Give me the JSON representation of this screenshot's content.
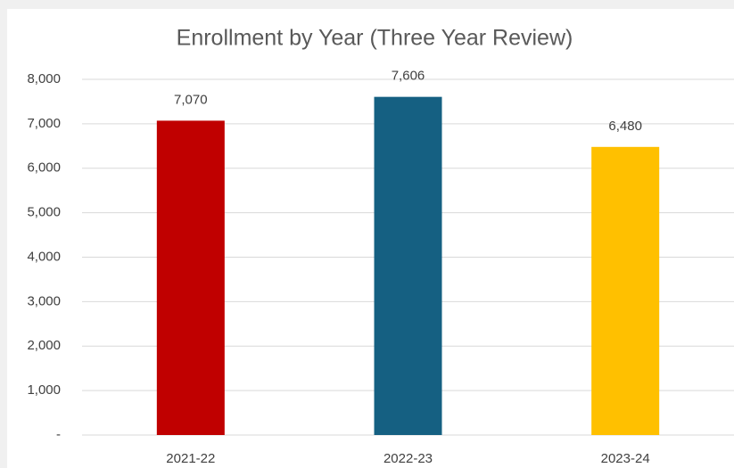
{
  "chart_data": {
    "type": "bar",
    "title": "Enrollment by Year (Three Year Review)",
    "categories": [
      "2021-22",
      "2022-23",
      "2023-24"
    ],
    "values": [
      7070,
      7606,
      6480
    ],
    "value_labels": [
      "7,070",
      "7,606",
      "6,480"
    ],
    "colors": [
      "#c00000",
      "#156082",
      "#ffc000"
    ],
    "ylim": [
      0,
      8000
    ],
    "yticks": [
      {
        "value": 0,
        "label": "-"
      },
      {
        "value": 1000,
        "label": "1,000"
      },
      {
        "value": 2000,
        "label": "2,000"
      },
      {
        "value": 3000,
        "label": "3,000"
      },
      {
        "value": 4000,
        "label": "4,000"
      },
      {
        "value": 5000,
        "label": "5,000"
      },
      {
        "value": 6000,
        "label": "6,000"
      },
      {
        "value": 7000,
        "label": "7,000"
      },
      {
        "value": 8000,
        "label": "8,000"
      }
    ],
    "grid": true
  }
}
